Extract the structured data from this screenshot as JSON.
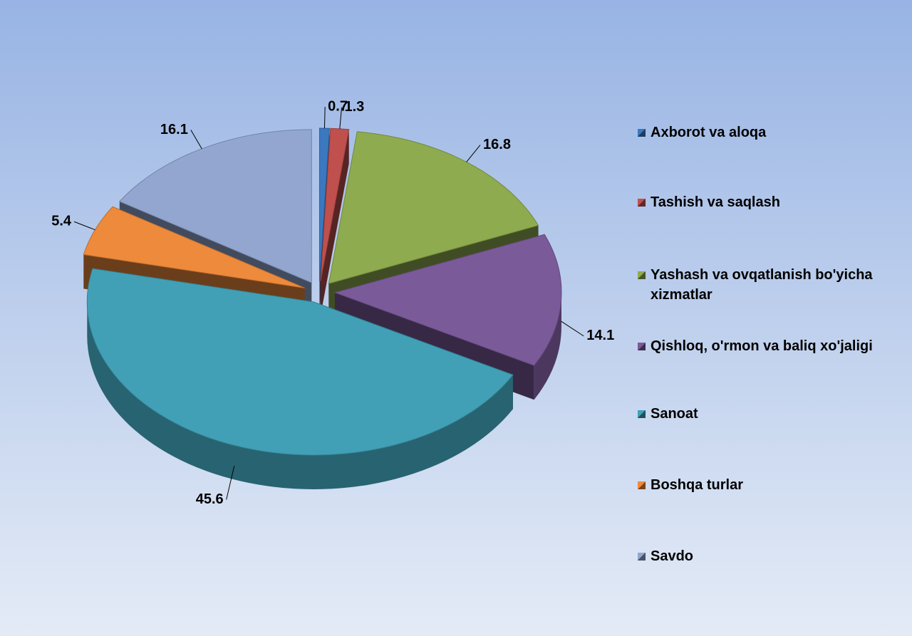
{
  "chart_data": {
    "type": "pie3d",
    "categories": [
      "Axborot va aloqa",
      "Tashish va saqlash",
      "Yashash va ovqatlanish bo'yicha xizmatlar",
      "Qishloq, o'rmon va baliq xo'jaligi",
      "Sanoat",
      "Boshqa turlar",
      "Savdo"
    ],
    "values": [
      0.7,
      1.3,
      16.8,
      14.1,
      45.6,
      5.4,
      16.1
    ],
    "colors": [
      "#3b78bf",
      "#c0504d",
      "#8eab4f",
      "#7a5a99",
      "#41a0b6",
      "#ee8a3c",
      "#92a6cf"
    ],
    "legend": "right"
  }
}
